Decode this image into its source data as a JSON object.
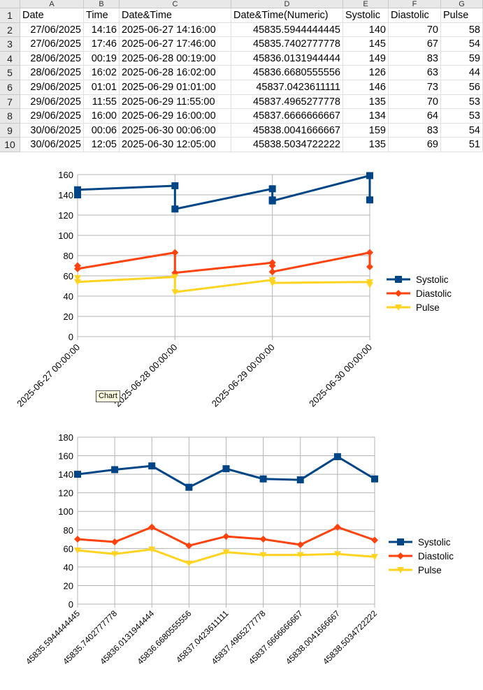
{
  "sheet": {
    "col_headers": [
      "A",
      "B",
      "C",
      "D",
      "E",
      "F",
      "G"
    ],
    "row_numbers": [
      "1",
      "2",
      "3",
      "4",
      "5",
      "6",
      "7",
      "8",
      "9",
      "10"
    ],
    "rows": [
      [
        "Date",
        "Time",
        "Date&Time",
        "Date&Time(Numeric)",
        "Systolic",
        "Diastolic",
        "Pulse"
      ],
      [
        "27/06/2025",
        "14:16",
        "2025-06-27 14:16:00",
        "45835.5944444445",
        "140",
        "70",
        "58"
      ],
      [
        "27/06/2025",
        "17:46",
        "2025-06-27 17:46:00",
        "45835.7402777778",
        "145",
        "67",
        "54"
      ],
      [
        "28/06/2025",
        "00:19",
        "2025-06-28 00:19:00",
        "45836.0131944444",
        "149",
        "83",
        "59"
      ],
      [
        "28/06/2025",
        "16:02",
        "2025-06-28 16:02:00",
        "45836.6680555556",
        "126",
        "63",
        "44"
      ],
      [
        "29/06/2025",
        "01:01",
        "2025-06-29 01:01:00",
        "45837.0423611111",
        "146",
        "73",
        "56"
      ],
      [
        "29/06/2025",
        "11:55",
        "2025-06-29 11:55:00",
        "45837.4965277778",
        "135",
        "70",
        "53"
      ],
      [
        "29/06/2025",
        "16:00",
        "2025-06-29 16:00:00",
        "45837.6666666667",
        "134",
        "64",
        "53"
      ],
      [
        "30/06/2025",
        "00:06",
        "2025-06-30 00:06:00",
        "45838.0041666667",
        "159",
        "83",
        "54"
      ],
      [
        "30/06/2025",
        "12:05",
        "2025-06-30 12:05:00",
        "45838.5034722222",
        "135",
        "69",
        "51"
      ]
    ]
  },
  "tooltip": "Chart",
  "colors": {
    "systolic": "#004586",
    "diastolic": "#ff420e",
    "pulse": "#ffd320",
    "grid": "#b3b3b3"
  },
  "chart_data": [
    {
      "type": "line",
      "x_kind": "date",
      "x_ticks": [
        "2025-06-27 00:00:00",
        "2025-06-28 00:00:00",
        "2025-06-29 00:00:00",
        "2025-06-30 00:00:00"
      ],
      "ylim": [
        0,
        160
      ],
      "y_ticks": [
        "0",
        "20",
        "40",
        "60",
        "80",
        "100",
        "120",
        "140",
        "160"
      ],
      "x_values": [
        "2025-06-27",
        "2025-06-27",
        "2025-06-28",
        "2025-06-28",
        "2025-06-29",
        "2025-06-29",
        "2025-06-29",
        "2025-06-30",
        "2025-06-30"
      ],
      "series": [
        {
          "name": "Systolic",
          "values": [
            140,
            145,
            149,
            126,
            146,
            135,
            134,
            159,
            135
          ]
        },
        {
          "name": "Diastolic",
          "values": [
            70,
            67,
            83,
            63,
            73,
            70,
            64,
            83,
            69
          ]
        },
        {
          "name": "Pulse",
          "values": [
            58,
            54,
            59,
            44,
            56,
            53,
            53,
            54,
            51
          ]
        }
      ],
      "legend": "right",
      "grid": true
    },
    {
      "type": "line",
      "categories": [
        "45835.5944444445",
        "45835.7402777778",
        "45836.0131944444",
        "45836.6680555556",
        "45837.0423611111",
        "45837.4965277778",
        "45837.6666666667",
        "45838.0041666667",
        "45838.5034722222"
      ],
      "ylim": [
        0,
        180
      ],
      "y_ticks": [
        "0",
        "20",
        "40",
        "60",
        "80",
        "100",
        "120",
        "140",
        "160",
        "180"
      ],
      "series": [
        {
          "name": "Systolic",
          "values": [
            140,
            145,
            149,
            126,
            146,
            135,
            134,
            159,
            135
          ]
        },
        {
          "name": "Diastolic",
          "values": [
            70,
            67,
            83,
            63,
            73,
            70,
            64,
            83,
            69
          ]
        },
        {
          "name": "Pulse",
          "values": [
            58,
            54,
            59,
            44,
            56,
            53,
            53,
            54,
            51
          ]
        }
      ],
      "legend": "right",
      "grid": true
    }
  ]
}
